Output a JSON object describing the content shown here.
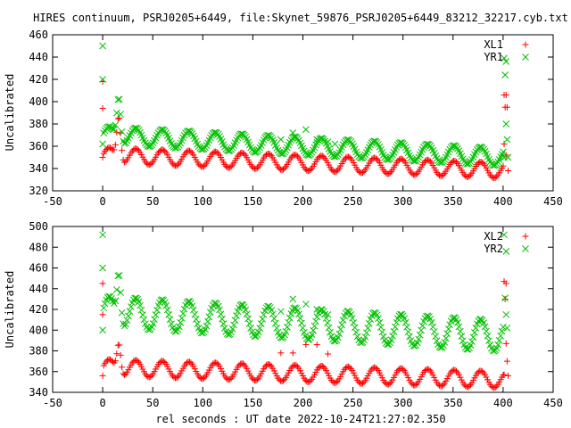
{
  "title": "HIRES continuum, PSRJ0205+6449, file:Skynet_59876_PSRJ0205+6449_83212_32217.cyb.txt",
  "chart_data": [
    {
      "type": "scatter",
      "ylabel": "Uncalibrated",
      "xlabel": "",
      "xlim": [
        -50,
        450
      ],
      "ylim": [
        320,
        460
      ],
      "xticks": [
        -50,
        0,
        50,
        100,
        150,
        200,
        250,
        300,
        350,
        400,
        450
      ],
      "yticks": [
        320,
        340,
        360,
        380,
        400,
        420,
        440,
        460
      ],
      "legend_placement": "top-right",
      "grid": false,
      "series": [
        {
          "name": "XL1",
          "marker": "plus",
          "color": "#ff0000",
          "baseline": 352,
          "drift": -14,
          "amplitude": 7,
          "period": 26.5,
          "phase": 0,
          "spike": {
            "x": 16,
            "y": 387
          },
          "x_range": [
            0,
            405
          ],
          "extra_points": [
            [
              0,
              418
            ],
            [
              0,
              394
            ],
            [
              0,
              350
            ],
            [
              401,
              406
            ],
            [
              403,
              406
            ],
            [
              402,
              395
            ],
            [
              404,
              395
            ],
            [
              401,
              362
            ],
            [
              403,
              352
            ],
            [
              405,
              338
            ]
          ]
        },
        {
          "name": "YR1",
          "marker": "cross",
          "color": "#00c000",
          "baseline": 370,
          "drift": -20,
          "amplitude": 8,
          "period": 26.5,
          "phase": 0,
          "spike": {
            "x": 16,
            "y": 404
          },
          "x_range": [
            0,
            405
          ],
          "extra_points": [
            [
              0,
              450
            ],
            [
              0,
              420
            ],
            [
              0,
              362
            ],
            [
              401,
              439
            ],
            [
              403,
              436
            ],
            [
              402,
              424
            ],
            [
              403,
              380
            ],
            [
              404,
              366
            ],
            [
              401,
              350
            ],
            [
              405,
              350
            ],
            [
              190,
              372
            ],
            [
              203,
              375
            ],
            [
              214,
              366
            ],
            [
              178,
              366
            ],
            [
              225,
              364
            ],
            [
              232,
              362
            ]
          ]
        }
      ]
    },
    {
      "type": "scatter",
      "ylabel": "Uncalibrated",
      "xlabel": "rel seconds : UT date 2022-10-24T21:27:02.350",
      "xlim": [
        -50,
        450
      ],
      "ylim": [
        340,
        500
      ],
      "xticks": [
        -50,
        0,
        50,
        100,
        150,
        200,
        250,
        300,
        350,
        400,
        450
      ],
      "yticks": [
        340,
        360,
        380,
        400,
        420,
        440,
        460,
        480,
        500
      ],
      "legend_placement": "top-right",
      "grid": false,
      "series": [
        {
          "name": "XL2",
          "marker": "plus",
          "color": "#ff0000",
          "baseline": 364,
          "drift": -12,
          "amplitude": 8,
          "period": 26.5,
          "phase": 0,
          "spike": {
            "x": 16,
            "y": 387
          },
          "x_range": [
            0,
            405
          ],
          "extra_points": [
            [
              0,
              445
            ],
            [
              0,
              415
            ],
            [
              0,
              356
            ],
            [
              401,
              447
            ],
            [
              403,
              445
            ],
            [
              402,
              430
            ],
            [
              403,
              387
            ],
            [
              404,
              370
            ],
            [
              401,
              357
            ],
            [
              405,
              356
            ],
            [
              190,
              378
            ],
            [
              203,
              386
            ],
            [
              214,
              386
            ],
            [
              178,
              378
            ],
            [
              225,
              377
            ]
          ]
        },
        {
          "name": "YR2",
          "marker": "cross",
          "color": "#00c000",
          "baseline": 418,
          "drift": -24,
          "amplitude": 15,
          "period": 26.5,
          "phase": 0,
          "spike": {
            "x": 16,
            "y": 455
          },
          "x_range": [
            0,
            405
          ],
          "extra_points": [
            [
              0,
              492
            ],
            [
              0,
              460
            ],
            [
              0,
              400
            ],
            [
              401,
              492
            ],
            [
              403,
              476
            ],
            [
              402,
              431
            ],
            [
              403,
              415
            ],
            [
              404,
              402
            ],
            [
              190,
              430
            ],
            [
              203,
              425
            ],
            [
              214,
              420
            ],
            [
              178,
              418
            ],
            [
              225,
              415
            ]
          ]
        }
      ]
    }
  ]
}
